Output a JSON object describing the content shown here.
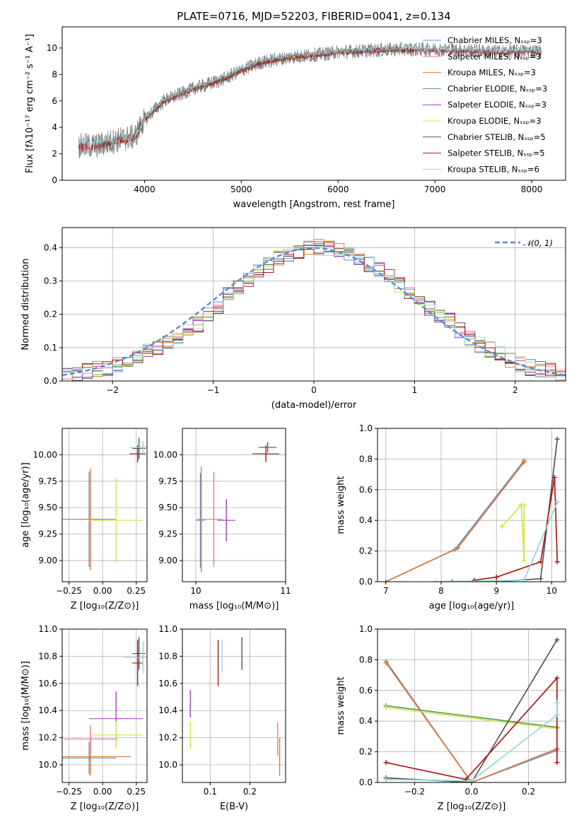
{
  "figure_title": "PLATE=0716, MJD=52203, FIBERID=0041, z=0.134",
  "chart_data": [
    {
      "id": "spectrum",
      "type": "line",
      "title": "PLATE=0716, MJD=52203, FIBERID=0041, z=0.134",
      "xlabel": "wavelength [Angstrom, rest frame]",
      "ylabel": "Flux [fλ10⁻¹⁷ erg cm⁻² s⁻¹ A⁻¹]",
      "xlim": [
        3150,
        8350
      ],
      "ylim": [
        0,
        11.6
      ],
      "xticks": [
        4000,
        5000,
        6000,
        7000,
        8000
      ],
      "yticks": [
        0,
        2,
        4,
        6,
        8,
        10
      ],
      "grid": false,
      "legend_position": "right",
      "series": [
        {
          "name": "Chabrier MILES, N_SSP=3",
          "color": "#6a8fd6",
          "x": [
            3540,
            3700,
            3900,
            4000,
            4200,
            4500,
            4800,
            5000,
            5200,
            5500,
            5800,
            6000,
            6300,
            6600,
            6780
          ],
          "y": [
            2.6,
            3.0,
            3.3,
            4.6,
            6.0,
            6.9,
            7.6,
            8.3,
            8.9,
            9.3,
            9.5,
            9.7,
            9.8,
            9.9,
            9.8
          ]
        },
        {
          "name": "Salpeter MILES, N_SSP=3",
          "color": "#e8788c",
          "x": [
            3540,
            3700,
            3900,
            4000,
            4200,
            4500,
            4800,
            5000,
            5200,
            5500,
            5800,
            6000,
            6300,
            6600,
            6780
          ],
          "y": [
            2.6,
            2.95,
            3.3,
            4.6,
            6.0,
            6.9,
            7.7,
            8.3,
            8.9,
            9.3,
            9.6,
            9.7,
            9.8,
            9.9,
            9.8
          ]
        },
        {
          "name": "Kroupa MILES, N_SSP=3",
          "color": "#e07b30",
          "x": [
            3540,
            3700,
            3900,
            4000,
            4200,
            4500,
            4800,
            5000,
            5200,
            5500,
            5800,
            6000,
            6300,
            6600,
            6780
          ],
          "y": [
            2.6,
            3.0,
            3.35,
            4.7,
            6.1,
            6.95,
            7.7,
            8.35,
            8.95,
            9.35,
            9.6,
            9.75,
            9.85,
            9.95,
            9.85
          ]
        },
        {
          "name": "Chabrier ELODIE, N_SSP=3",
          "color": "#559f55",
          "x": [
            3900,
            4000,
            4200,
            4500,
            4800,
            5000,
            5200,
            5500,
            5800,
            6000,
            6300,
            6600,
            6780
          ],
          "y": [
            3.3,
            4.6,
            6.0,
            6.9,
            7.6,
            8.3,
            8.9,
            9.3,
            9.5,
            9.7,
            9.8,
            9.9,
            9.8
          ]
        },
        {
          "name": "Salpeter ELODIE, N_SSP=3",
          "color": "#a43fbd",
          "x": [
            3900,
            4000,
            4200,
            4500,
            4800,
            5000,
            5200,
            5500,
            5800,
            6000,
            6300,
            6600,
            6780
          ],
          "y": [
            3.3,
            4.65,
            6.05,
            6.9,
            7.65,
            8.3,
            8.9,
            9.3,
            9.55,
            9.7,
            9.8,
            9.9,
            9.8
          ]
        },
        {
          "name": "Kroupa ELODIE, N_SSP=3",
          "color": "#d8e04a",
          "x": [
            3900,
            4000,
            4200,
            4500,
            4800,
            5000,
            5200,
            5500,
            5800,
            6000,
            6300,
            6600,
            6780
          ],
          "y": [
            3.3,
            4.6,
            6.0,
            6.9,
            7.6,
            8.3,
            8.9,
            9.3,
            9.5,
            9.7,
            9.8,
            9.9,
            9.8
          ]
        },
        {
          "name": "Chabrier STELIB, N_SSP=5",
          "color": "#555555",
          "x": [
            3320,
            3500,
            3700,
            3900,
            4000,
            4200,
            4500,
            4800,
            5000,
            5200,
            5500,
            5800,
            6000,
            6300,
            6600,
            7000,
            7400,
            7700,
            8000,
            8100
          ],
          "y": [
            2.6,
            2.6,
            3.0,
            3.3,
            4.6,
            6.0,
            6.9,
            7.6,
            8.3,
            8.9,
            9.3,
            9.5,
            9.7,
            9.8,
            9.9,
            9.9,
            9.8,
            9.7,
            9.8,
            9.7
          ]
        },
        {
          "name": "Salpeter STELIB, N_SSP=5",
          "color": "#b01818",
          "x": [
            3320,
            3500,
            3700,
            3900,
            4000,
            4200,
            4500,
            4800,
            5000,
            5200,
            5500,
            5800,
            6000,
            6300,
            6600,
            7000,
            7400,
            7700,
            8000,
            8100
          ],
          "y": [
            2.55,
            2.55,
            2.95,
            3.25,
            4.55,
            5.95,
            6.85,
            7.55,
            8.25,
            8.85,
            9.25,
            9.45,
            9.65,
            9.75,
            9.85,
            9.85,
            9.75,
            9.65,
            9.75,
            9.65
          ]
        },
        {
          "name": "Kroupa STELIB, N_SSP=6",
          "color": "#8fd8e0",
          "x": [
            3320,
            3500,
            3700,
            3900,
            4000,
            4200,
            4500,
            4800,
            5000,
            5200,
            5500,
            5800,
            6000,
            6300,
            6600,
            7000,
            7400,
            7700,
            8000,
            8100
          ],
          "y": [
            3.0,
            2.95,
            3.1,
            3.4,
            4.7,
            6.1,
            7.0,
            7.8,
            8.45,
            9.05,
            9.4,
            9.6,
            9.8,
            9.9,
            10.0,
            10.0,
            9.9,
            9.8,
            9.9,
            9.8
          ]
        }
      ]
    },
    {
      "id": "residuals",
      "type": "line",
      "xlabel": "(data-model)/error",
      "ylabel": "Normed distribution",
      "xlim": [
        -2.5,
        2.5
      ],
      "ylim": [
        0,
        0.46
      ],
      "xticks": [
        -2,
        -1,
        0,
        1,
        2
      ],
      "yticks": [
        0.0,
        0.1,
        0.2,
        0.3,
        0.4
      ],
      "grid": true,
      "legend_position": "top-right",
      "gaussian": {
        "label": "𝒩(0, 1)",
        "color": "#5b8bd8",
        "mean": 0,
        "sigma": 1
      },
      "histogram_x": [
        -2.5,
        -2.4,
        -2.3,
        -2.2,
        -2.1,
        -2.0,
        -1.9,
        -1.8,
        -1.7,
        -1.6,
        -1.5,
        -1.4,
        -1.3,
        -1.2,
        -1.1,
        -1.0,
        -0.9,
        -0.8,
        -0.7,
        -0.6,
        -0.5,
        -0.4,
        -0.3,
        -0.2,
        -0.1,
        0.0,
        0.1,
        0.2,
        0.3,
        0.4,
        0.5,
        0.6,
        0.7,
        0.8,
        0.9,
        1.0,
        1.1,
        1.2,
        1.3,
        1.4,
        1.5,
        1.6,
        1.7,
        1.8,
        1.9,
        2.0,
        2.1,
        2.2,
        2.3,
        2.4
      ],
      "histogram_y": [
        0.018,
        0.022,
        0.03,
        0.035,
        0.04,
        0.05,
        0.06,
        0.075,
        0.09,
        0.1,
        0.12,
        0.135,
        0.15,
        0.17,
        0.2,
        0.22,
        0.26,
        0.28,
        0.3,
        0.33,
        0.35,
        0.37,
        0.38,
        0.39,
        0.4,
        0.4,
        0.4,
        0.39,
        0.38,
        0.37,
        0.35,
        0.33,
        0.31,
        0.29,
        0.27,
        0.24,
        0.22,
        0.2,
        0.18,
        0.15,
        0.13,
        0.11,
        0.095,
        0.08,
        0.065,
        0.05,
        0.04,
        0.035,
        0.03,
        0.025
      ],
      "histogram_colors": [
        "#6a8fd6",
        "#e8788c",
        "#e07b30",
        "#559f55",
        "#a43fbd",
        "#d8e04a",
        "#555555",
        "#b01818",
        "#8fd8e0"
      ]
    },
    {
      "id": "age-vs-Z",
      "type": "scatter",
      "xlabel": "Z [log₁₀(Z/Z⊙)]",
      "ylabel": "age  [log₁₀(age/yr)]",
      "xlim": [
        -0.3,
        0.33
      ],
      "ylim": [
        8.8,
        10.25
      ],
      "xticks": [
        -0.25,
        0.0,
        0.25
      ],
      "yticks": [
        9.0,
        9.25,
        9.5,
        9.75,
        10.0
      ],
      "grid": true,
      "points": [
        {
          "x": -0.1,
          "y": 9.39,
          "xerr": 0.2,
          "yerr": 0.45,
          "color": "#6a8fd6"
        },
        {
          "x": -0.09,
          "y": 9.39,
          "xerr": 0.1,
          "yerr": 0.48,
          "color": "#e07b30"
        },
        {
          "x": 0.1,
          "y": 9.38,
          "xerr": 0.2,
          "yerr": 0.4,
          "color": "#d8e04a"
        },
        {
          "x": 0.27,
          "y": 10.06,
          "xerr": 0.05,
          "yerr": 0.1,
          "color": "#555555"
        },
        {
          "x": 0.26,
          "y": 10.01,
          "xerr": 0.06,
          "yerr": 0.08,
          "color": "#b01818"
        },
        {
          "x": 0.3,
          "y": 10.07,
          "xerr": 0.1,
          "yerr": 0.06,
          "color": "#8fd8e0"
        }
      ]
    },
    {
      "id": "age-vs-mass",
      "type": "scatter",
      "xlabel": "mass [log₁₀(M/M⊙)]",
      "ylabel": "",
      "xlim": [
        9.85,
        11.0
      ],
      "ylim": [
        8.8,
        10.25
      ],
      "xticks": [
        10,
        11
      ],
      "yticks": [
        9.0,
        9.25,
        9.5,
        9.75,
        10.0
      ],
      "grid": true,
      "points": [
        {
          "x": 10.05,
          "y": 9.38,
          "xerr": 0.05,
          "yerr": 0.45,
          "color": "#6a8fd6"
        },
        {
          "x": 10.06,
          "y": 9.39,
          "xerr": 0.05,
          "yerr": 0.5,
          "color": "#e07b30"
        },
        {
          "x": 10.2,
          "y": 9.39,
          "xerr": 0.1,
          "yerr": 0.45,
          "color": "#e8788c"
        },
        {
          "x": 10.34,
          "y": 9.38,
          "xerr": 0.1,
          "yerr": 0.2,
          "color": "#a43fbd"
        },
        {
          "x": 10.8,
          "y": 10.07,
          "xerr": 0.1,
          "yerr": 0.05,
          "color": "#555555"
        },
        {
          "x": 10.78,
          "y": 10.01,
          "xerr": 0.15,
          "yerr": 0.08,
          "color": "#b01818"
        }
      ]
    },
    {
      "id": "weight-vs-age",
      "type": "line",
      "xlabel": "age  [log₁₀(age/yr)]",
      "ylabel": "mass weight",
      "xlim": [
        6.85,
        10.25
      ],
      "ylim": [
        0,
        1.0
      ],
      "xticks": [
        7,
        8,
        9,
        10
      ],
      "yticks": [
        0.0,
        0.2,
        0.4,
        0.6,
        0.8,
        1.0
      ],
      "grid": true,
      "series": [
        {
          "color": "#6a8fd6",
          "x": [
            7.0,
            8.25,
            9.5
          ],
          "y": [
            0.0,
            0.21,
            0.79
          ]
        },
        {
          "color": "#e07b30",
          "x": [
            7.0,
            8.3,
            9.5
          ],
          "y": [
            0.0,
            0.22,
            0.78
          ]
        },
        {
          "color": "#d8e04a",
          "x": [
            9.1,
            9.45,
            9.5,
            9.5
          ],
          "y": [
            0.36,
            0.5,
            0.14,
            0.5
          ]
        },
        {
          "color": "#555555",
          "x": [
            8.2,
            9.0,
            9.8,
            10.1
          ],
          "y": [
            0.0,
            0.0,
            0.02,
            0.93
          ]
        },
        {
          "color": "#b01818",
          "x": [
            8.6,
            9.0,
            9.8,
            10.05,
            10.1
          ],
          "y": [
            0.01,
            0.03,
            0.13,
            0.68,
            0.13
          ]
        },
        {
          "color": "#8fd8e0",
          "x": [
            7.9,
            9.5,
            10.1
          ],
          "y": [
            0.0,
            0.01,
            0.52
          ]
        }
      ]
    },
    {
      "id": "mass-vs-Z",
      "type": "scatter",
      "xlabel": "Z [log₁₀(Z/Z⊙)]",
      "ylabel": "mass [log₁₀(M/M⊙)]",
      "xlim": [
        -0.3,
        0.33
      ],
      "ylim": [
        9.87,
        11.0
      ],
      "xticks": [
        -0.25,
        0.0,
        0.25
      ],
      "yticks": [
        10.0,
        10.2,
        10.4,
        10.6,
        10.8,
        11.0
      ],
      "grid": true,
      "points": [
        {
          "x": -0.1,
          "y": 10.05,
          "xerr": 0.2,
          "yerr": 0.12,
          "color": "#6a8fd6"
        },
        {
          "x": -0.09,
          "y": 10.06,
          "xerr": 0.3,
          "yerr": 0.14,
          "color": "#e07b30"
        },
        {
          "x": -0.09,
          "y": 10.19,
          "xerr": 0.2,
          "yerr": 0.1,
          "color": "#e8788c"
        },
        {
          "x": 0.1,
          "y": 10.34,
          "xerr": 0.2,
          "yerr": 0.2,
          "color": "#a43fbd"
        },
        {
          "x": 0.1,
          "y": 10.22,
          "xerr": 0.2,
          "yerr": 0.1,
          "color": "#d8e04a"
        },
        {
          "x": 0.27,
          "y": 10.82,
          "xerr": 0.05,
          "yerr": 0.12,
          "color": "#555555"
        },
        {
          "x": 0.26,
          "y": 10.75,
          "xerr": 0.04,
          "yerr": 0.17,
          "color": "#b01818"
        },
        {
          "x": 0.3,
          "y": 10.79,
          "xerr": 0.15,
          "yerr": 0.12,
          "color": "#8fd8e0"
        }
      ]
    },
    {
      "id": "mass-vs-EBV",
      "type": "scatter",
      "xlabel": "E(B-V)",
      "ylabel": "",
      "xlim": [
        0.03,
        0.29
      ],
      "ylim": [
        9.87,
        11.0
      ],
      "xticks": [
        0.1,
        0.2
      ],
      "yticks": [
        10.0,
        10.2,
        10.4,
        10.6,
        10.8,
        11.0
      ],
      "grid": true,
      "points": [
        {
          "x": 0.05,
          "y": 10.45,
          "xerr": 0.0,
          "yerr": 0.1,
          "color": "#a43fbd"
        },
        {
          "x": 0.05,
          "y": 10.22,
          "xerr": 0.0,
          "yerr": 0.1,
          "color": "#d8e04a"
        },
        {
          "x": 0.12,
          "y": 10.75,
          "xerr": 0.0,
          "yerr": 0.17,
          "color": "#b01818"
        },
        {
          "x": 0.13,
          "y": 10.8,
          "xerr": 0.0,
          "yerr": 0.12,
          "color": "#8fd8e0"
        },
        {
          "x": 0.18,
          "y": 10.82,
          "xerr": 0.0,
          "yerr": 0.12,
          "color": "#555555"
        },
        {
          "x": 0.27,
          "y": 10.19,
          "xerr": 0.0,
          "yerr": 0.12,
          "color": "#e8788c"
        },
        {
          "x": 0.275,
          "y": 10.06,
          "xerr": 0.0,
          "yerr": 0.14,
          "color": "#e07b30"
        }
      ]
    },
    {
      "id": "weight-vs-Z",
      "type": "line",
      "xlabel": "Z [log₁₀(Z/Z⊙)]",
      "ylabel": "mass weight",
      "xlim": [
        -0.33,
        0.33
      ],
      "ylim": [
        0,
        1.0
      ],
      "xticks": [
        -0.2,
        0.0,
        0.2
      ],
      "yticks": [
        0.0,
        0.2,
        0.4,
        0.6,
        0.8,
        1.0
      ],
      "grid": true,
      "series": [
        {
          "color": "#6a8fd6",
          "x": [
            -0.3,
            0.0,
            0.3
          ],
          "y": [
            0.79,
            0.0,
            0.21
          ]
        },
        {
          "color": "#e07b30",
          "x": [
            -0.3,
            0.0,
            0.3
          ],
          "y": [
            0.78,
            0.0,
            0.22
          ]
        },
        {
          "color": "#559f55",
          "x": [
            -0.3,
            0.3
          ],
          "y": [
            0.5,
            0.36
          ]
        },
        {
          "color": "#d8e04a",
          "x": [
            -0.3,
            0.3
          ],
          "y": [
            0.49,
            0.35
          ]
        },
        {
          "color": "#555555",
          "x": [
            -0.3,
            0.0,
            0.3
          ],
          "y": [
            0.03,
            0.0,
            0.93
          ]
        },
        {
          "color": "#b01818",
          "x": [
            -0.3,
            -0.02,
            0.3,
            0.3
          ],
          "y": [
            0.13,
            0.02,
            0.68,
            0.13
          ]
        },
        {
          "color": "#8fd8e0",
          "x": [
            -0.3,
            0.0,
            0.3,
            0.3
          ],
          "y": [
            0.02,
            0.01,
            0.44,
            0.52
          ]
        }
      ]
    }
  ]
}
